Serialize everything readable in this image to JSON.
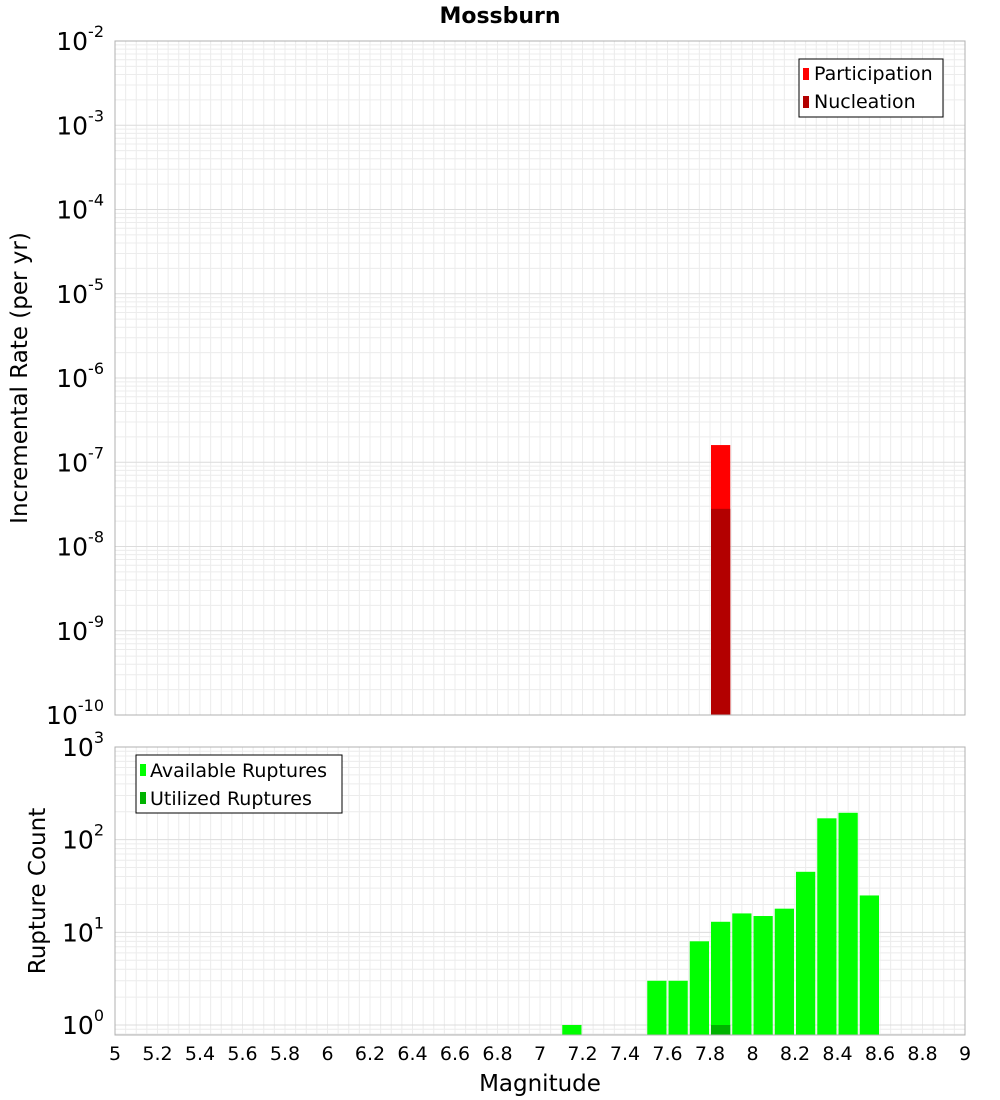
{
  "chart_data": [
    {
      "type": "bar",
      "title": "Mossburn",
      "xlabel": "",
      "ylabel": "Incremental Rate (per yr)",
      "y_scale": "log",
      "ylim": [
        1e-10,
        0.01
      ],
      "xlim": [
        5,
        9
      ],
      "y_ticks": [
        {
          "base": "10",
          "exp": "-2",
          "value": 0.01
        },
        {
          "base": "10",
          "exp": "-3",
          "value": 0.001
        },
        {
          "base": "10",
          "exp": "-4",
          "value": 0.0001
        },
        {
          "base": "10",
          "exp": "-5",
          "value": 1e-05
        },
        {
          "base": "10",
          "exp": "-6",
          "value": 1e-06
        },
        {
          "base": "10",
          "exp": "-7",
          "value": 1e-07
        },
        {
          "base": "10",
          "exp": "-8",
          "value": 1e-08
        },
        {
          "base": "10",
          "exp": "-9",
          "value": 1e-09
        },
        {
          "base": "10",
          "exp": "-10",
          "value": 1e-10
        }
      ],
      "grid": true,
      "legend_position": "top-right",
      "series": [
        {
          "name": "Participation",
          "color": "#ff0000",
          "x": [
            7.85
          ],
          "values": [
            1.6e-07
          ]
        },
        {
          "name": "Nucleation",
          "color": "#b30000",
          "x": [
            7.85
          ],
          "values": [
            2.8e-08
          ]
        }
      ]
    },
    {
      "type": "bar",
      "title": "",
      "xlabel": "Magnitude",
      "ylabel": "Rupture Count",
      "y_scale": "log",
      "ylim": [
        0.78,
        1000
      ],
      "xlim": [
        5,
        9
      ],
      "x_ticks": [
        "5",
        "5.2",
        "5.4",
        "5.6",
        "5.8",
        "6",
        "6.2",
        "6.4",
        "6.6",
        "6.8",
        "7",
        "7.2",
        "7.4",
        "7.6",
        "7.8",
        "8",
        "8.2",
        "8.4",
        "8.6",
        "8.8",
        "9"
      ],
      "y_ticks": [
        {
          "base": "10",
          "exp": "3",
          "value": 1000
        },
        {
          "base": "10",
          "exp": "2",
          "value": 100
        },
        {
          "base": "10",
          "exp": "1",
          "value": 10
        },
        {
          "base": "10",
          "exp": "0",
          "value": 1
        }
      ],
      "grid": true,
      "legend_position": "top-left",
      "series": [
        {
          "name": "Available Ruptures",
          "color": "#00ff00",
          "x": [
            7.15,
            7.55,
            7.65,
            7.75,
            7.85,
            7.95,
            8.05,
            8.15,
            8.25,
            8.35,
            8.45,
            8.55
          ],
          "values": [
            1,
            3,
            3,
            8,
            13,
            16,
            15,
            18,
            45,
            170,
            195,
            25
          ]
        },
        {
          "name": "Utilized Ruptures",
          "color": "#00b300",
          "x": [
            7.85
          ],
          "values": [
            1
          ]
        }
      ]
    }
  ]
}
